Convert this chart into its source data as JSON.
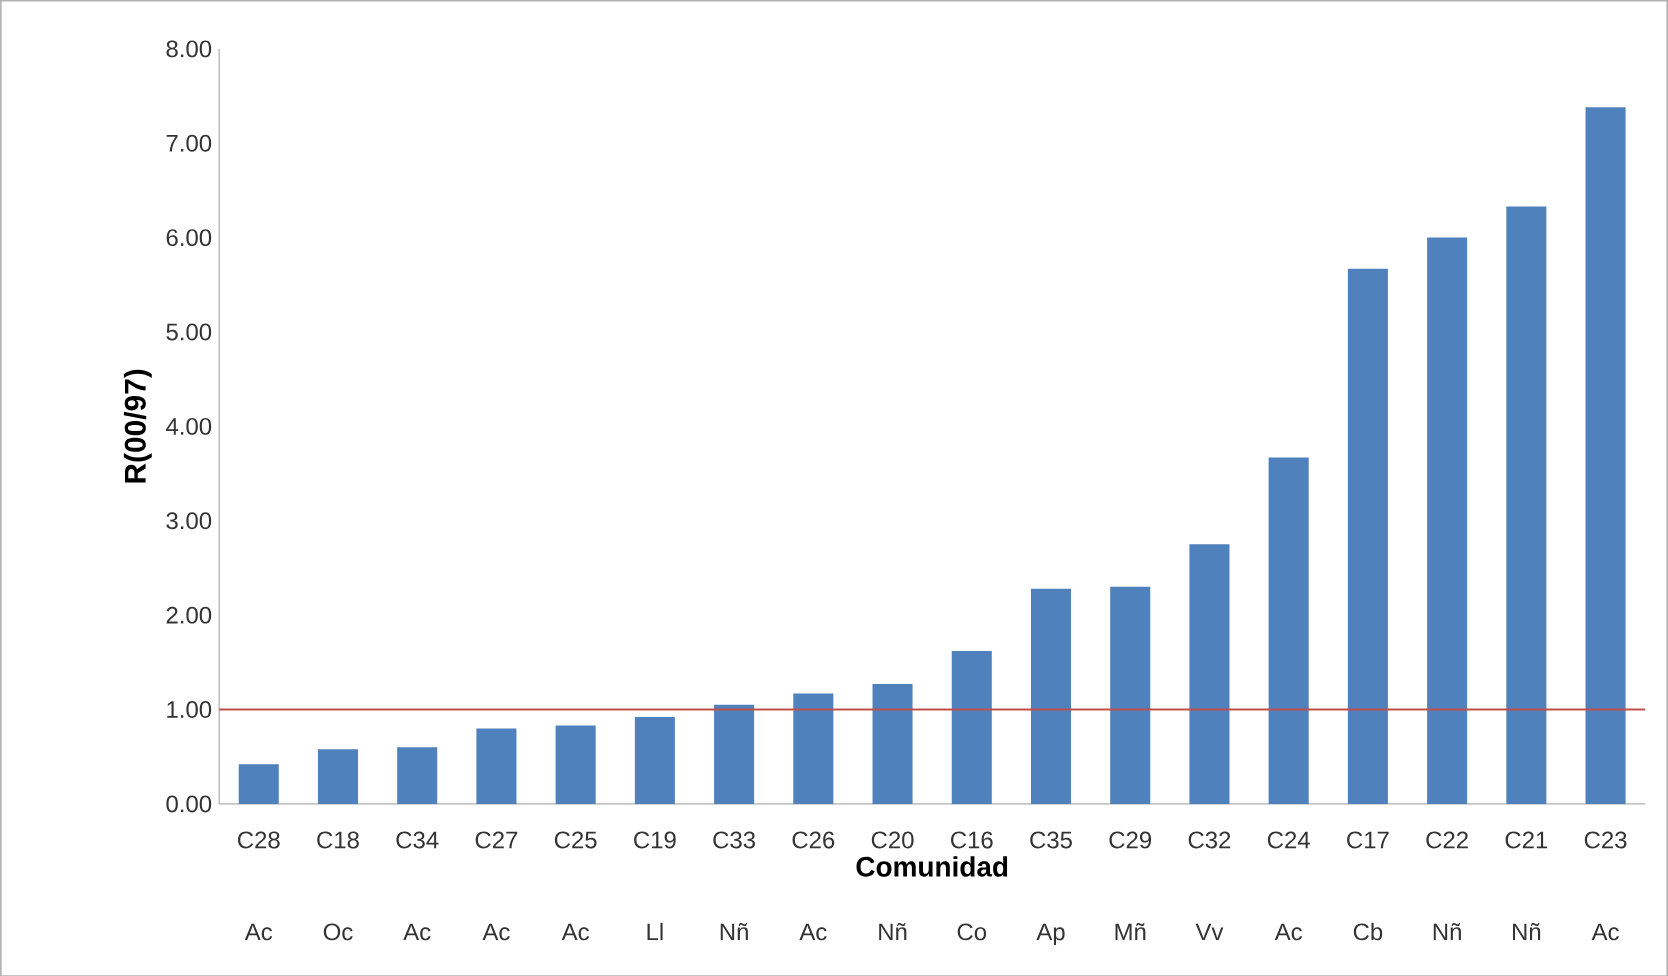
{
  "chart_data": {
    "type": "bar",
    "ylabel": "R(00/97)",
    "xlabel": "Comunidad",
    "categories": [
      "C28",
      "C18",
      "C34",
      "C27",
      "C25",
      "C19",
      "C33",
      "C26",
      "C20",
      "C16",
      "C35",
      "C29",
      "C32",
      "C24",
      "C17",
      "C22",
      "C21",
      "C23"
    ],
    "values": [
      0.42,
      0.58,
      0.6,
      0.8,
      0.83,
      0.92,
      1.05,
      1.17,
      1.27,
      1.62,
      2.28,
      2.3,
      2.75,
      3.67,
      5.67,
      6.0,
      6.33,
      7.38
    ],
    "color": "#4f81bd",
    "ylim": [
      0,
      8
    ],
    "yticks": [
      {
        "value": 0,
        "label": "0.00"
      },
      {
        "value": 1,
        "label": "1.00"
      },
      {
        "value": 2,
        "label": "2.00"
      },
      {
        "value": 3,
        "label": "3.00"
      },
      {
        "value": 4,
        "label": "4.00"
      },
      {
        "value": 5,
        "label": "5.00"
      },
      {
        "value": 6,
        "label": "6.00"
      },
      {
        "value": 7,
        "label": "7.00"
      },
      {
        "value": 8,
        "label": "8.00"
      }
    ],
    "grid": false,
    "ref_lines": [
      {
        "axis": "y",
        "value": 1,
        "color": "#c0504d"
      }
    ],
    "annotations": [
      "Ac",
      "Oc",
      "Ac",
      "Ac",
      "Ac",
      "Ll",
      "Nñ",
      "Ac",
      "Nñ",
      "Co",
      "Ap",
      "Mñ",
      "Vv",
      "Ac",
      "Cb",
      "Nñ",
      "Nñ",
      "Ac"
    ]
  }
}
